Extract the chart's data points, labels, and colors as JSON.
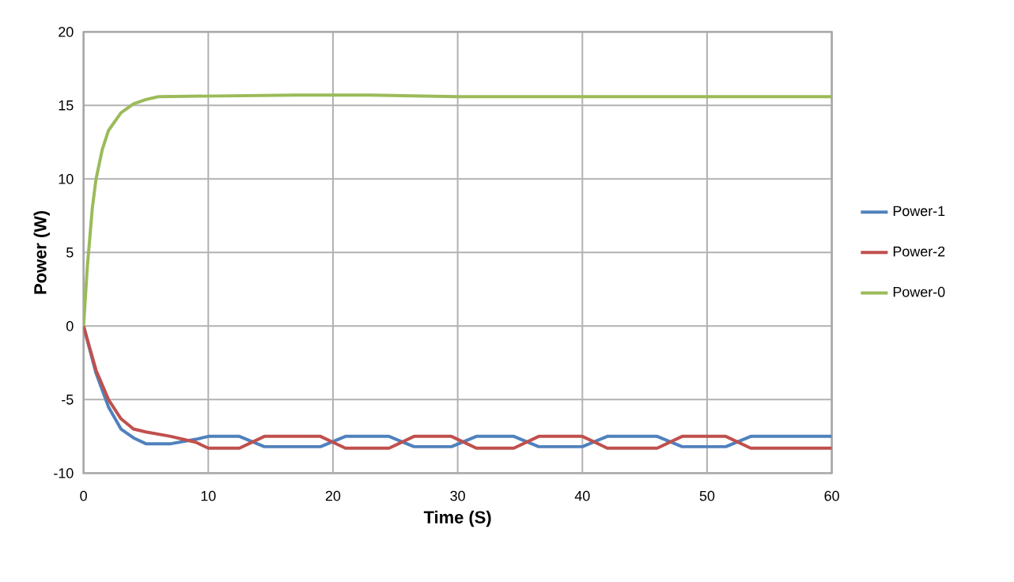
{
  "chart_data": {
    "type": "line",
    "xlabel": "Time (S)",
    "ylabel": "Power (W)",
    "xlim": [
      0,
      60
    ],
    "ylim": [
      -10,
      20
    ],
    "xticks": [
      0,
      10,
      20,
      30,
      40,
      50,
      60
    ],
    "yticks": [
      -10,
      -5,
      0,
      5,
      10,
      15,
      20
    ],
    "grid": true,
    "legend": "right",
    "marker": "none",
    "line_style": "solid",
    "series": [
      {
        "name": "Power-1",
        "color": "#4f81bd",
        "x": [
          0,
          0.5,
          1,
          2,
          3,
          4,
          5,
          7,
          9,
          10,
          12.5,
          14.5,
          19,
          21,
          24.5,
          26.5,
          29.5,
          31.5,
          34.5,
          36.5,
          40,
          42,
          46,
          48,
          51.5,
          53.5,
          60
        ],
        "values": [
          0,
          -1.6,
          -3.2,
          -5.5,
          -7,
          -7.6,
          -8,
          -8,
          -7.7,
          -7.5,
          -7.5,
          -8.2,
          -8.2,
          -7.5,
          -7.5,
          -8.2,
          -8.2,
          -7.5,
          -7.5,
          -8.2,
          -8.2,
          -7.5,
          -7.5,
          -8.2,
          -8.2,
          -7.5,
          -7.5
        ]
      },
      {
        "name": "Power-2",
        "color": "#c0504d",
        "x": [
          0,
          0.5,
          1,
          2,
          3,
          4,
          5,
          7,
          9,
          10,
          12.5,
          14.5,
          19,
          21,
          24.5,
          26.5,
          29.5,
          31.5,
          34.5,
          36.5,
          40,
          42,
          46,
          48,
          51.5,
          53.5,
          60
        ],
        "values": [
          0,
          -1.5,
          -3,
          -5,
          -6.3,
          -7,
          -7.2,
          -7.5,
          -7.9,
          -8.3,
          -8.3,
          -7.5,
          -7.5,
          -8.3,
          -8.3,
          -7.5,
          -7.5,
          -8.3,
          -8.3,
          -7.5,
          -7.5,
          -8.3,
          -8.3,
          -7.5,
          -7.5,
          -8.3,
          -8.3
        ]
      },
      {
        "name": "Power-0",
        "color": "#9bbb59",
        "x": [
          0,
          0.3,
          0.7,
          1,
          1.5,
          2,
          3,
          4,
          5,
          6,
          17,
          23,
          30,
          40,
          50,
          60
        ],
        "values": [
          0,
          4,
          8,
          10,
          12,
          13.3,
          14.5,
          15.1,
          15.4,
          15.6,
          15.7,
          15.7,
          15.6,
          15.6,
          15.6,
          15.6
        ]
      }
    ]
  }
}
